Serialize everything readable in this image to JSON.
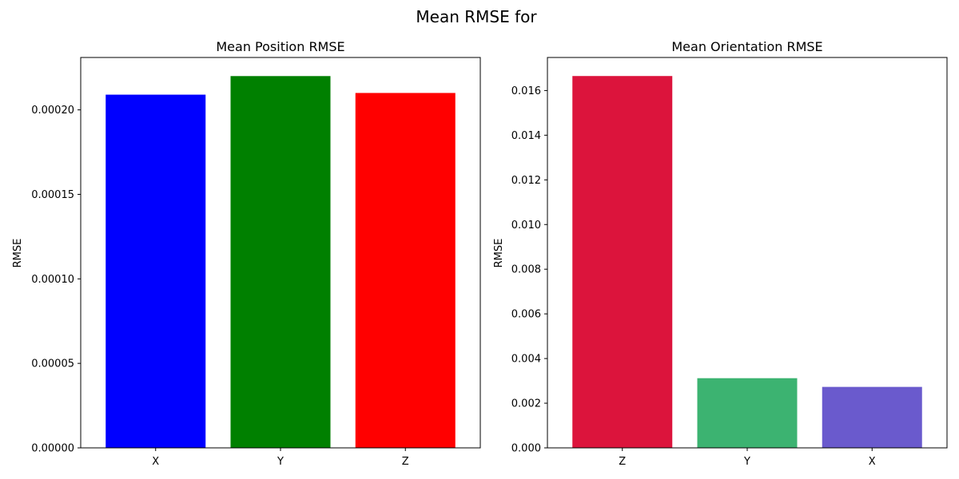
{
  "figure": {
    "suptitle": "Mean RMSE for"
  },
  "chart_data": [
    {
      "type": "bar",
      "title": "Mean Position RMSE",
      "xlabel": "",
      "ylabel": "RMSE",
      "categories": [
        "X",
        "Y",
        "Z"
      ],
      "values": [
        0.000209,
        0.00022,
        0.00021
      ],
      "colors": [
        "#0000ff",
        "#008000",
        "#ff0000"
      ],
      "ylim": [
        0,
        0.000231
      ],
      "yticks": [
        0,
        5e-05,
        0.0001,
        0.00015,
        0.0002
      ],
      "ytick_labels": [
        "0.00000",
        "0.00005",
        "0.00010",
        "0.00015",
        "0.00020"
      ],
      "grid": false
    },
    {
      "type": "bar",
      "title": "Mean Orientation RMSE",
      "xlabel": "",
      "ylabel": "RMSE",
      "categories": [
        "Z",
        "Y",
        "X"
      ],
      "values": [
        0.01665,
        0.00312,
        0.00273
      ],
      "colors": [
        "#dc143c",
        "#3cb371",
        "#6a5acd"
      ],
      "ylim": [
        0,
        0.01748
      ],
      "yticks": [
        0,
        0.002,
        0.004,
        0.006,
        0.008,
        0.01,
        0.012,
        0.014,
        0.016
      ],
      "ytick_labels": [
        "0.000",
        "0.002",
        "0.004",
        "0.006",
        "0.008",
        "0.010",
        "0.012",
        "0.014",
        "0.016"
      ],
      "grid": false
    }
  ]
}
